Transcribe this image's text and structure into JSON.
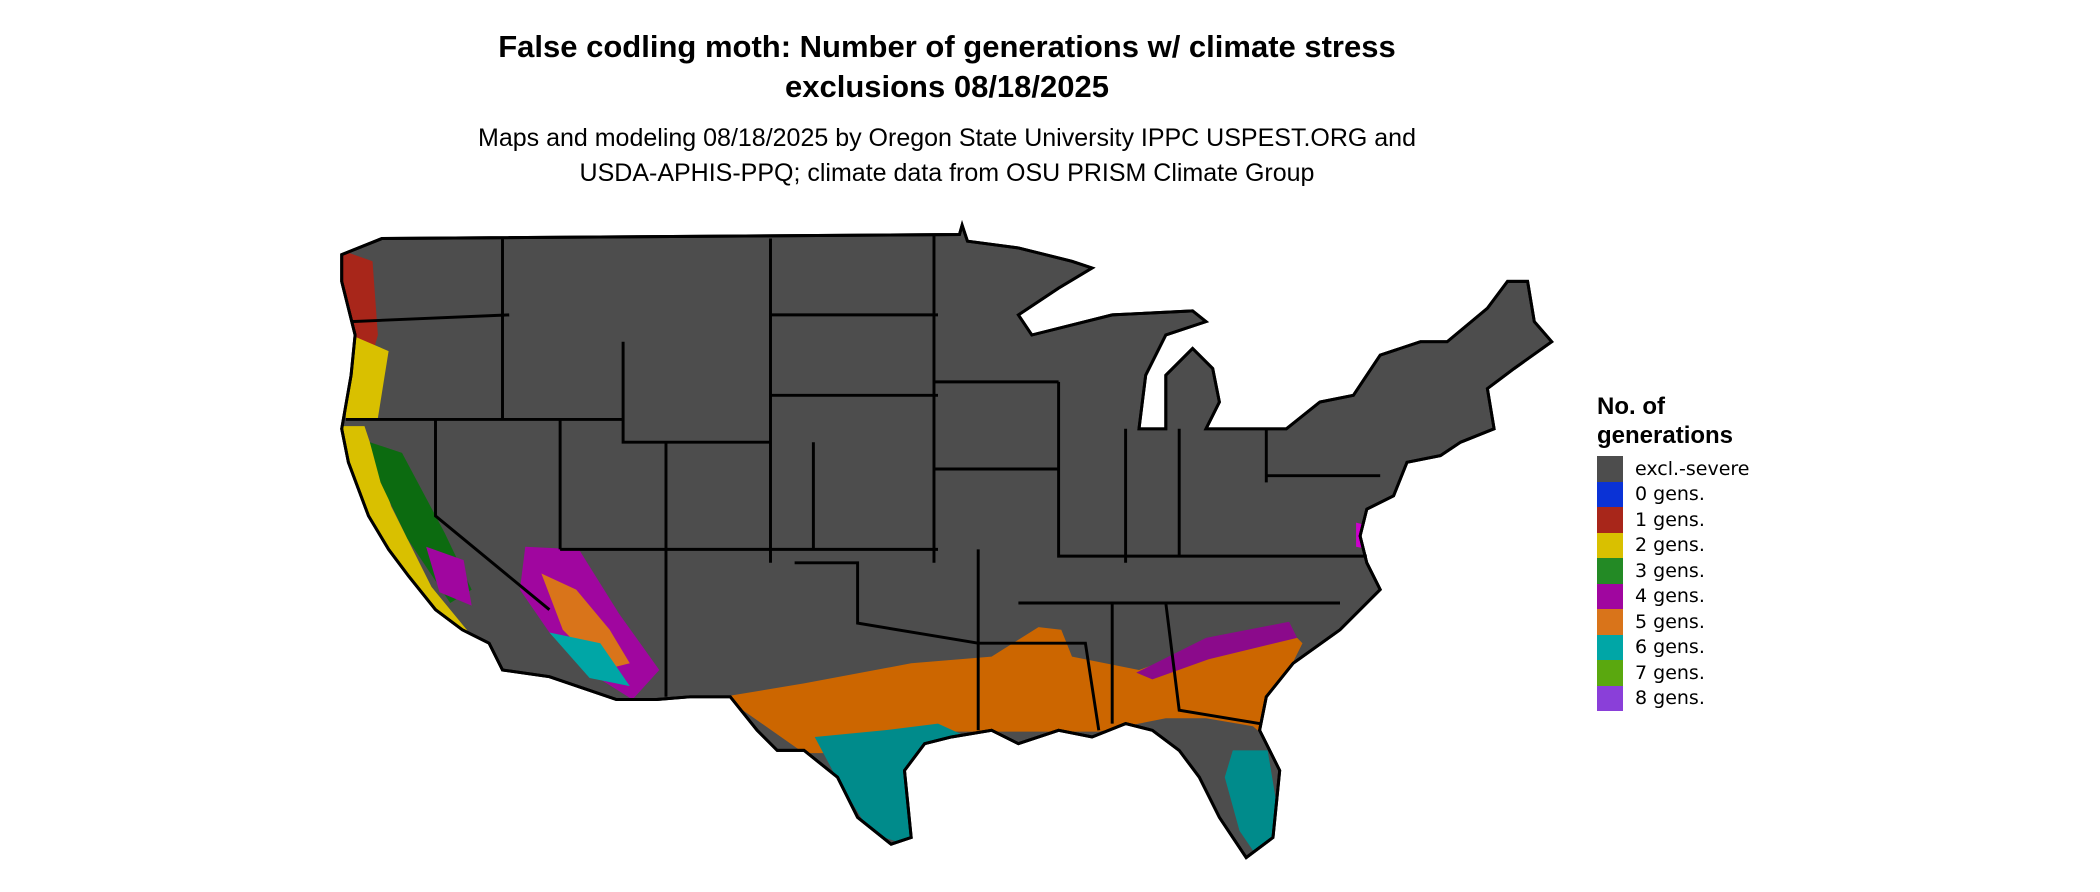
{
  "title": {
    "line1": "False codling moth: Number of generations w/ climate stress",
    "line2": "exclusions 08/18/2025"
  },
  "subtitle": {
    "line1": "Maps and modeling 08/18/2025 by Oregon State University IPPC USPEST.ORG and",
    "line2": "USDA-APHIS-PPQ; climate data from OSU PRISM Climate Group"
  },
  "legend": {
    "title_line1": "No. of",
    "title_line2": "generations",
    "items": [
      {
        "label": "excl.-severe",
        "color": "#4d4d4d"
      },
      {
        "label": "0 gens.",
        "color": "#0a32d6"
      },
      {
        "label": "1 gens.",
        "color": "#a8261a"
      },
      {
        "label": "2 gens.",
        "color": "#d9c000"
      },
      {
        "label": "3 gens.",
        "color": "#238a25"
      },
      {
        "label": "4 gens.",
        "color": "#a0069f"
      },
      {
        "label": "5 gens.",
        "color": "#d9741a"
      },
      {
        "label": "6 gens.",
        "color": "#00a6a6"
      },
      {
        "label": "7 gens.",
        "color": "#5aa80f"
      },
      {
        "label": "8 gens.",
        "color": "#8a3fd9"
      }
    ]
  }
}
